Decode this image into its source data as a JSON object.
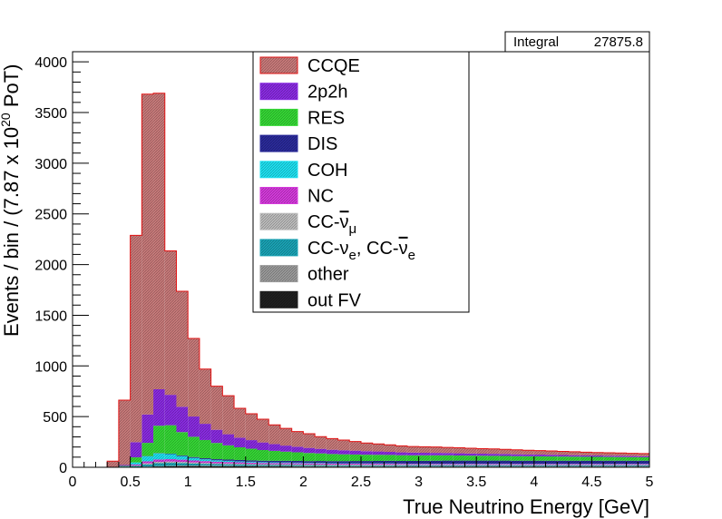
{
  "stats_box": {
    "label": "Integral",
    "value": "27875.8"
  },
  "chart_data": {
    "type": "stacked-histogram",
    "xlabel": "True Neutrino Energy [GeV]",
    "ylabel_parts": {
      "prefix": "Events / bin / (7.87 x 10",
      "exp": "20",
      "suffix": " PoT)"
    },
    "xlim": [
      0,
      5
    ],
    "ylim": [
      0,
      4100
    ],
    "x_ticks": [
      "0",
      "0.5",
      "1",
      "1.5",
      "2",
      "2.5",
      "3",
      "3.5",
      "4",
      "4.5",
      "5"
    ],
    "y_ticks": [
      "0",
      "500",
      "1000",
      "1500",
      "2000",
      "2500",
      "3000",
      "3500",
      "4000"
    ],
    "bin_width": 0.1,
    "bin_edges_start": 0,
    "series": [
      {
        "name": "out FV",
        "color": "#202020",
        "values": [
          0,
          0,
          0,
          0,
          0,
          3,
          5,
          8,
          10,
          12,
          12,
          11,
          10,
          10,
          9,
          9,
          8,
          8,
          8,
          7,
          7,
          7,
          6,
          6,
          6,
          6,
          6,
          6,
          6,
          5,
          5,
          5,
          5,
          5,
          5,
          5,
          5,
          5,
          5,
          5,
          5,
          5,
          5,
          5,
          5,
          5,
          5,
          5,
          5,
          5
        ]
      },
      {
        "name": "other",
        "color": "#9a9a9a",
        "values": [
          0,
          0,
          0,
          0,
          0,
          0,
          2,
          3,
          4,
          5,
          5,
          5,
          5,
          5,
          5,
          5,
          5,
          5,
          5,
          5,
          5,
          5,
          5,
          5,
          5,
          5,
          5,
          5,
          5,
          5,
          5,
          5,
          5,
          5,
          5,
          5,
          5,
          5,
          5,
          5,
          5,
          5,
          5,
          5,
          5,
          5,
          5,
          5,
          5,
          5
        ]
      },
      {
        "name": "CC-νe, CC-ν̄e",
        "color": "#1aa3b5",
        "values": [
          0,
          0,
          0,
          0,
          2,
          10,
          22,
          30,
          30,
          25,
          20,
          18,
          16,
          14,
          13,
          12,
          11,
          10,
          10,
          10,
          9,
          9,
          9,
          9,
          9,
          8,
          8,
          8,
          8,
          8,
          8,
          8,
          8,
          8,
          8,
          8,
          8,
          8,
          8,
          8,
          8,
          8,
          8,
          8,
          8,
          8,
          8,
          8,
          8,
          8
        ]
      },
      {
        "name": "CC-ν̄μ",
        "color": "#bcbcbc",
        "values": [
          0,
          0,
          0,
          0,
          1,
          5,
          10,
          12,
          12,
          11,
          10,
          9,
          8,
          8,
          8,
          7,
          7,
          7,
          7,
          7,
          6,
          6,
          6,
          6,
          6,
          6,
          6,
          6,
          6,
          6,
          6,
          6,
          6,
          6,
          6,
          6,
          6,
          6,
          6,
          6,
          6,
          6,
          6,
          6,
          6,
          6,
          6,
          6,
          6,
          6
        ]
      },
      {
        "name": "NC",
        "color": "#d43adb",
        "values": [
          0,
          0,
          0,
          0,
          2,
          10,
          20,
          24,
          24,
          22,
          20,
          18,
          16,
          15,
          14,
          13,
          12,
          12,
          12,
          11,
          11,
          11,
          10,
          10,
          10,
          10,
          10,
          10,
          9,
          9,
          9,
          9,
          9,
          9,
          9,
          9,
          9,
          9,
          8,
          8,
          8,
          8,
          8,
          8,
          8,
          8,
          8,
          8,
          8,
          8
        ]
      },
      {
        "name": "COH",
        "color": "#1ee0f0",
        "values": [
          0,
          0,
          0,
          0,
          3,
          20,
          50,
          60,
          50,
          35,
          25,
          18,
          14,
          12,
          10,
          9,
          8,
          7,
          6,
          6,
          5,
          5,
          5,
          4,
          4,
          4,
          4,
          4,
          3,
          3,
          3,
          3,
          3,
          3,
          3,
          3,
          3,
          3,
          3,
          3,
          3,
          3,
          3,
          3,
          3,
          3,
          3,
          3,
          3,
          3
        ]
      },
      {
        "name": "DIS",
        "color": "#2a2a9a",
        "values": [
          0,
          0,
          0,
          0,
          0,
          0,
          2,
          3,
          5,
          7,
          9,
          10,
          11,
          12,
          13,
          13,
          14,
          15,
          16,
          17,
          18,
          19,
          20,
          21,
          22,
          23,
          24,
          25,
          26,
          27,
          28,
          29,
          30,
          30,
          30,
          30,
          30,
          30,
          30,
          30,
          30,
          30,
          30,
          30,
          30,
          30,
          30,
          30,
          30,
          30
        ]
      },
      {
        "name": "RES",
        "color": "#35d835",
        "values": [
          0,
          0,
          0,
          0,
          5,
          50,
          130,
          270,
          280,
          230,
          200,
          180,
          160,
          140,
          125,
          115,
          105,
          98,
          90,
          85,
          80,
          75,
          70,
          67,
          64,
          62,
          60,
          58,
          56,
          55,
          54,
          53,
          52,
          50,
          49,
          48,
          47,
          46,
          45,
          44,
          43,
          42,
          41,
          40,
          39,
          38,
          37,
          36,
          35,
          34
        ]
      },
      {
        "name": "2p2h",
        "color": "#8a2be2",
        "values": [
          0,
          0,
          0,
          0,
          10,
          150,
          280,
          360,
          300,
          250,
          200,
          160,
          130,
          110,
          95,
          85,
          75,
          67,
          60,
          55,
          50,
          45,
          42,
          40,
          38,
          35,
          33,
          30,
          28,
          27,
          25,
          24,
          23,
          22,
          21,
          20,
          20,
          19,
          18,
          17,
          17,
          16,
          15,
          14,
          13,
          13,
          12,
          12,
          11,
          10
        ]
      },
      {
        "name": "CCQE",
        "color": "#c87a7a",
        "values": [
          0,
          0,
          0,
          60,
          640,
          2040,
          3160,
          2920,
          1420,
          1140,
          770,
          540,
          430,
          380,
          290,
          260,
          230,
          190,
          170,
          150,
          140,
          120,
          110,
          100,
          90,
          80,
          75,
          70,
          65,
          60,
          60,
          58,
          55,
          55,
          52,
          50,
          48,
          46,
          44,
          42,
          40,
          38,
          36,
          34,
          32,
          30,
          29,
          28,
          27,
          26
        ]
      }
    ]
  }
}
